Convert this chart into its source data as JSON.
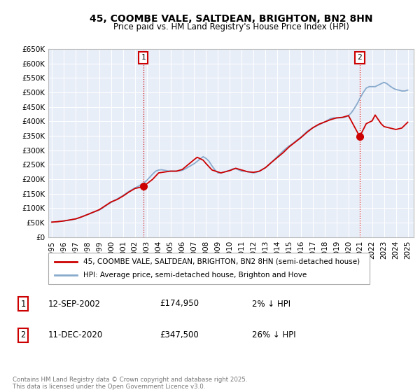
{
  "title": "45, COOMBE VALE, SALTDEAN, BRIGHTON, BN2 8HN",
  "subtitle": "Price paid vs. HM Land Registry's House Price Index (HPI)",
  "ylim": [
    0,
    650000
  ],
  "xlim": [
    1994.7,
    2025.5
  ],
  "yticks": [
    0,
    50000,
    100000,
    150000,
    200000,
    250000,
    300000,
    350000,
    400000,
    450000,
    500000,
    550000,
    600000,
    650000
  ],
  "ytick_labels": [
    "£0",
    "£50K",
    "£100K",
    "£150K",
    "£200K",
    "£250K",
    "£300K",
    "£350K",
    "£400K",
    "£450K",
    "£500K",
    "£550K",
    "£600K",
    "£650K"
  ],
  "xticks": [
    1995,
    1996,
    1997,
    1998,
    1999,
    2000,
    2001,
    2002,
    2003,
    2004,
    2005,
    2006,
    2007,
    2008,
    2009,
    2010,
    2011,
    2012,
    2013,
    2014,
    2015,
    2016,
    2017,
    2018,
    2019,
    2020,
    2021,
    2022,
    2023,
    2024,
    2025
  ],
  "marker1_x": 2002.71,
  "marker1_y": 174950,
  "marker1_label": "1",
  "marker1_date": "12-SEP-2002",
  "marker1_price": "£174,950",
  "marker1_hpi": "2% ↓ HPI",
  "marker2_x": 2020.95,
  "marker2_y": 347500,
  "marker2_label": "2",
  "marker2_date": "11-DEC-2020",
  "marker2_price": "£347,500",
  "marker2_hpi": "26% ↓ HPI",
  "vline1_x": 2002.71,
  "vline2_x": 2020.95,
  "property_color": "#cc0000",
  "hpi_color": "#88aacc",
  "background_color": "#e8eef8",
  "legend_label_property": "45, COOMBE VALE, SALTDEAN, BRIGHTON, BN2 8HN (semi-detached house)",
  "legend_label_hpi": "HPI: Average price, semi-detached house, Brighton and Hove",
  "footnote": "Contains HM Land Registry data © Crown copyright and database right 2025.\nThis data is licensed under the Open Government Licence v3.0.",
  "hpi_data_x": [
    1995.0,
    1995.25,
    1995.5,
    1995.75,
    1996.0,
    1996.25,
    1996.5,
    1996.75,
    1997.0,
    1997.25,
    1997.5,
    1997.75,
    1998.0,
    1998.25,
    1998.5,
    1998.75,
    1999.0,
    1999.25,
    1999.5,
    1999.75,
    2000.0,
    2000.25,
    2000.5,
    2000.75,
    2001.0,
    2001.25,
    2001.5,
    2001.75,
    2002.0,
    2002.25,
    2002.5,
    2002.75,
    2003.0,
    2003.25,
    2003.5,
    2003.75,
    2004.0,
    2004.25,
    2004.5,
    2004.75,
    2005.0,
    2005.25,
    2005.5,
    2005.75,
    2006.0,
    2006.25,
    2006.5,
    2006.75,
    2007.0,
    2007.25,
    2007.5,
    2007.75,
    2008.0,
    2008.25,
    2008.5,
    2008.75,
    2009.0,
    2009.25,
    2009.5,
    2009.75,
    2010.0,
    2010.25,
    2010.5,
    2010.75,
    2011.0,
    2011.25,
    2011.5,
    2011.75,
    2012.0,
    2012.25,
    2012.5,
    2012.75,
    2013.0,
    2013.25,
    2013.5,
    2013.75,
    2014.0,
    2014.25,
    2014.5,
    2014.75,
    2015.0,
    2015.25,
    2015.5,
    2015.75,
    2016.0,
    2016.25,
    2016.5,
    2016.75,
    2017.0,
    2017.25,
    2017.5,
    2017.75,
    2018.0,
    2018.25,
    2018.5,
    2018.75,
    2019.0,
    2019.25,
    2019.5,
    2019.75,
    2020.0,
    2020.25,
    2020.5,
    2020.75,
    2021.0,
    2021.25,
    2021.5,
    2021.75,
    2022.0,
    2022.25,
    2022.5,
    2022.75,
    2023.0,
    2023.25,
    2023.5,
    2023.75,
    2024.0,
    2024.25,
    2024.5,
    2024.75,
    2025.0
  ],
  "hpi_data_y": [
    52000,
    53000,
    54000,
    55000,
    56000,
    57500,
    59000,
    61000,
    63000,
    66000,
    70000,
    74000,
    78000,
    82000,
    86000,
    90000,
    94000,
    100000,
    107000,
    114000,
    120000,
    126000,
    132000,
    138000,
    144000,
    151000,
    158000,
    164000,
    170000,
    175000,
    181000,
    187000,
    196000,
    207000,
    218000,
    228000,
    232000,
    233000,
    231000,
    229000,
    228000,
    228000,
    228000,
    229000,
    231000,
    236000,
    242000,
    248000,
    254000,
    262000,
    270000,
    278000,
    272000,
    262000,
    246000,
    232000,
    222000,
    222000,
    225000,
    228000,
    231000,
    236000,
    237000,
    232000,
    228000,
    228000,
    226000,
    224000,
    222000,
    224000,
    228000,
    234000,
    240000,
    248000,
    258000,
    268000,
    278000,
    288000,
    298000,
    307000,
    315000,
    322000,
    330000,
    338000,
    346000,
    355000,
    365000,
    372000,
    378000,
    383000,
    388000,
    393000,
    398000,
    404000,
    410000,
    412000,
    412000,
    412000,
    413000,
    415000,
    420000,
    430000,
    445000,
    462000,
    482000,
    500000,
    515000,
    520000,
    520000,
    520000,
    525000,
    530000,
    535000,
    530000,
    522000,
    515000,
    510000,
    508000,
    505000,
    505000,
    508000
  ],
  "property_data_x": [
    1995.0,
    1995.5,
    1996.0,
    1997.0,
    1997.5,
    1998.0,
    1999.0,
    2000.0,
    2000.5,
    2001.0,
    2001.5,
    2002.0,
    2002.71,
    2003.5,
    2004.0,
    2005.0,
    2005.5,
    2006.0,
    2007.0,
    2007.25,
    2007.75,
    2008.0,
    2008.5,
    2009.25,
    2010.0,
    2010.5,
    2011.5,
    2012.0,
    2012.5,
    2013.0,
    2013.5,
    2014.0,
    2014.5,
    2015.0,
    2015.5,
    2016.0,
    2016.5,
    2017.0,
    2017.5,
    2018.0,
    2018.5,
    2019.0,
    2019.5,
    2020.0,
    2020.95,
    2021.5,
    2022.0,
    2022.25,
    2022.75,
    2023.0,
    2023.5,
    2024.0,
    2024.5,
    2025.0
  ],
  "property_data_y": [
    52000,
    53500,
    56000,
    63000,
    70000,
    78000,
    95000,
    122000,
    130000,
    142000,
    156000,
    168000,
    174950,
    200000,
    222000,
    228000,
    228000,
    234000,
    268000,
    276000,
    266000,
    254000,
    232000,
    222000,
    230000,
    238000,
    226000,
    224000,
    228000,
    240000,
    258000,
    275000,
    292000,
    312000,
    328000,
    344000,
    362000,
    378000,
    390000,
    398000,
    406000,
    412000,
    414000,
    420000,
    347500,
    392000,
    402000,
    422000,
    392000,
    382000,
    377000,
    372000,
    377000,
    397000
  ]
}
